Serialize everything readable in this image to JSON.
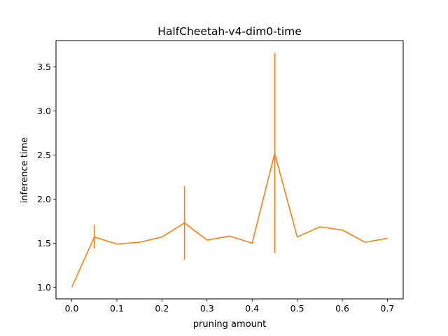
{
  "chart_data": {
    "type": "line",
    "title": "HalfCheetah-v4-dim0-time",
    "xlabel": "pruning amount",
    "ylabel": "inference time",
    "xlim": [
      -0.035,
      0.735
    ],
    "ylim": [
      0.867,
      3.8
    ],
    "xticks": [
      "0.0",
      "0.1",
      "0.2",
      "0.3",
      "0.4",
      "0.5",
      "0.6",
      "0.7"
    ],
    "yticks": [
      "1.0",
      "1.5",
      "2.0",
      "2.5",
      "3.0",
      "3.5"
    ],
    "grid": false,
    "legend": "none",
    "series": [
      {
        "color": "#ff7f0e",
        "x": [
          0.0,
          0.05,
          0.1,
          0.15,
          0.2,
          0.25,
          0.3,
          0.35,
          0.4,
          0.45,
          0.5,
          0.55,
          0.6,
          0.65,
          0.7
        ],
        "y": [
          1.0,
          1.57,
          1.49,
          1.51,
          1.57,
          1.73,
          1.535,
          1.58,
          1.5,
          2.52,
          1.57,
          1.685,
          1.65,
          1.51,
          1.555
        ],
        "err_low": [
          1.0,
          1.44,
          1.49,
          1.51,
          1.57,
          1.31,
          1.535,
          1.58,
          1.5,
          1.39,
          1.57,
          1.685,
          1.65,
          1.51,
          1.555
        ],
        "err_high": [
          1.0,
          1.71,
          1.49,
          1.51,
          1.57,
          2.15,
          1.535,
          1.58,
          1.5,
          3.66,
          1.57,
          1.685,
          1.65,
          1.51,
          1.555
        ]
      }
    ]
  }
}
